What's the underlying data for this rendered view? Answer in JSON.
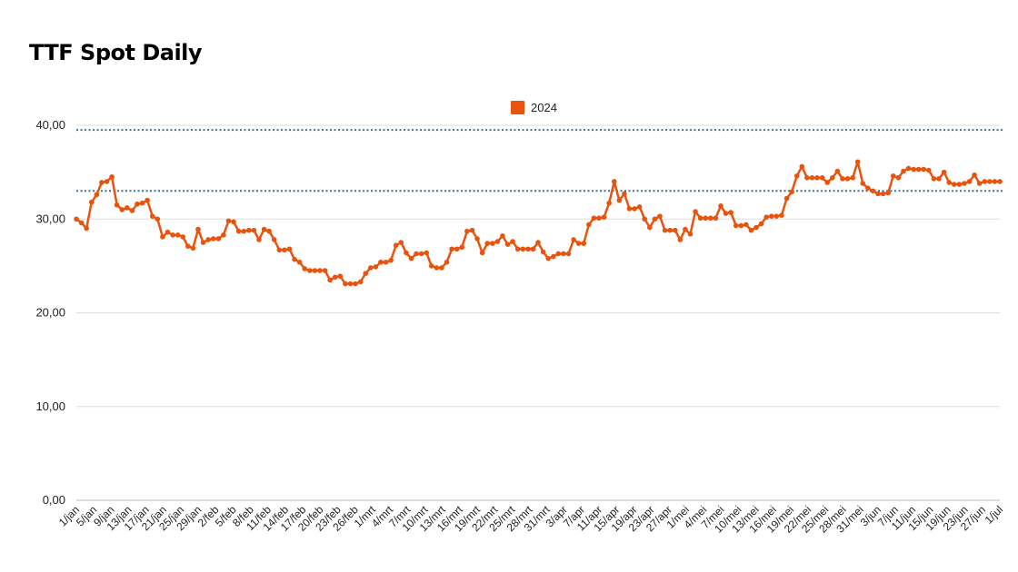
{
  "chart_data": {
    "type": "line",
    "title": "TTF Spot Daily",
    "xlabel": "",
    "ylabel": "",
    "ylim": [
      0,
      40
    ],
    "yticks": [
      "0,00",
      "10,00",
      "20,00",
      "30,00",
      "40,00"
    ],
    "grid": true,
    "legend_position": "top-center",
    "colors": {
      "series": "#E8540E",
      "reference": "#3B6E9E",
      "grid": "#DDDDDD",
      "axis": "#BBBBBB"
    },
    "reference_lines": [
      39.5,
      33.0
    ],
    "xtick_labels": [
      "1/jan",
      "5/jan",
      "9/jan",
      "13/jan",
      "17/jan",
      "21/jan",
      "25/jan",
      "29/jan",
      "2/feb",
      "5/feb",
      "8/feb",
      "11/feb",
      "14/feb",
      "17/feb",
      "20/feb",
      "23/feb",
      "26/feb",
      "1/mrt",
      "4/mrt",
      "7/mrt",
      "10/mrt",
      "13/mrt",
      "16/mrt",
      "19/mrt",
      "22/mrt",
      "25/mrt",
      "28/mrt",
      "31/mrt",
      "3/apr",
      "7/apr",
      "11/apr",
      "15/apr",
      "19/apr",
      "23/apr",
      "27/apr",
      "1/mei",
      "4/mei",
      "7/mei",
      "10/mei",
      "13/mei",
      "16/mei",
      "19/mei",
      "22/mei",
      "25/mei",
      "28/mei",
      "31/mei",
      "3/jun",
      "7/jun",
      "11/jun",
      "15/jun",
      "19/jun",
      "23/jun",
      "27/jun",
      "1/jul"
    ],
    "series": [
      {
        "name": "2024",
        "values": [
          30.0,
          29.6,
          29.0,
          31.8,
          32.6,
          33.9,
          34.0,
          34.5,
          31.5,
          31.0,
          31.2,
          30.9,
          31.6,
          31.7,
          32.0,
          30.3,
          30.0,
          28.1,
          28.6,
          28.3,
          28.3,
          28.1,
          27.1,
          26.9,
          28.9,
          27.5,
          27.8,
          27.9,
          27.9,
          28.3,
          29.8,
          29.7,
          28.7,
          28.7,
          28.8,
          28.8,
          27.8,
          28.9,
          28.7,
          27.8,
          26.7,
          26.7,
          26.8,
          25.7,
          25.4,
          24.7,
          24.5,
          24.5,
          24.5,
          24.5,
          23.5,
          23.8,
          23.9,
          23.1,
          23.1,
          23.1,
          23.3,
          24.2,
          24.8,
          24.9,
          25.4,
          25.4,
          25.6,
          27.2,
          27.5,
          26.4,
          25.8,
          26.3,
          26.3,
          26.4,
          25.0,
          24.8,
          24.8,
          25.4,
          26.8,
          26.8,
          27.0,
          28.7,
          28.8,
          27.9,
          26.4,
          27.4,
          27.4,
          27.6,
          28.2,
          27.3,
          27.6,
          26.8,
          26.8,
          26.8,
          26.8,
          27.5,
          26.5,
          25.8,
          26.0,
          26.3,
          26.3,
          26.3,
          27.8,
          27.4,
          27.4,
          29.4,
          30.1,
          30.1,
          30.2,
          31.7,
          34.0,
          32.0,
          32.7,
          31.1,
          31.1,
          31.3,
          30.0,
          29.1,
          30.0,
          30.3,
          28.8,
          28.8,
          28.8,
          27.8,
          28.9,
          28.4,
          30.8,
          30.1,
          30.1,
          30.1,
          30.1,
          31.4,
          30.6,
          30.7,
          29.3,
          29.3,
          29.4,
          28.8,
          29.1,
          29.5,
          30.2,
          30.3,
          30.3,
          30.4,
          32.2,
          32.9,
          34.6,
          35.6,
          34.4,
          34.4,
          34.4,
          34.4,
          33.9,
          34.4,
          35.1,
          34.3,
          34.3,
          34.4,
          36.1,
          33.8,
          33.3,
          33.0,
          32.7,
          32.7,
          32.8,
          34.6,
          34.4,
          35.1,
          35.4,
          35.3,
          35.3,
          35.3,
          35.2,
          34.3,
          34.3,
          35.0,
          33.9,
          33.7,
          33.7,
          33.8,
          34.0,
          34.7,
          33.8,
          34.0,
          34.0,
          34.0,
          34.0
        ]
      }
    ]
  }
}
